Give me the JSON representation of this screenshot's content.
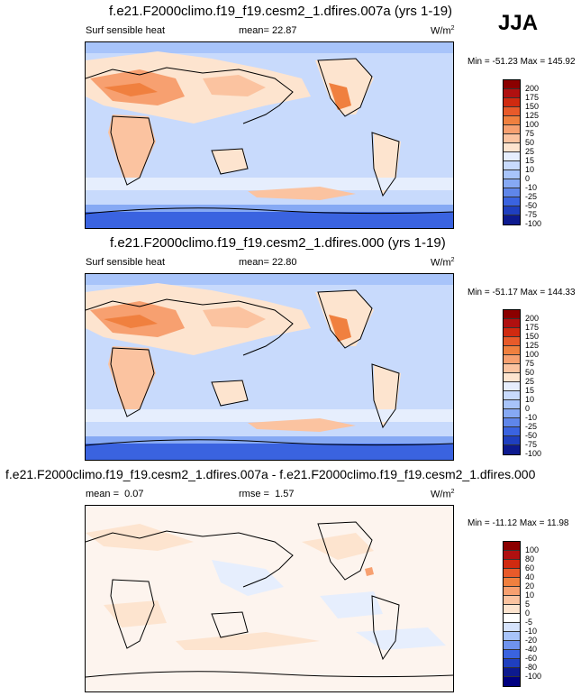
{
  "season": "JJA",
  "panels": [
    {
      "title": "f.e21.F2000climo.f19_f19.cesm2_1.dfires.007a (yrs 1-19)",
      "variable": "Surf sensible heat",
      "stat1_label": "mean=",
      "stat1_value": "22.87",
      "units": "W/m",
      "units_exp": "2",
      "minmax": "Min = -51.23 Max = 145.92",
      "colorbar": {
        "labels": [
          "200",
          "175",
          "150",
          "125",
          "100",
          "75",
          "50",
          "25",
          "15",
          "10",
          "0",
          "-10",
          "-25",
          "-50",
          "-75",
          "-100"
        ],
        "colors": [
          "#8b0000",
          "#b01010",
          "#d02a10",
          "#e85a2a",
          "#f0803f",
          "#f7a070",
          "#fbc3a0",
          "#fde4cf",
          "#e6eefd",
          "#c8dafc",
          "#a8c4fa",
          "#86a9f4",
          "#5f86ea",
          "#3a63e0",
          "#1f3fbf",
          "#0d1a8f",
          "#000080"
        ]
      }
    },
    {
      "title": "f.e21.F2000climo.f19_f19.cesm2_1.dfires.000 (yrs 1-19)",
      "variable": "Surf sensible heat",
      "stat1_label": "mean=",
      "stat1_value": "22.80",
      "units": "W/m",
      "units_exp": "2",
      "minmax": "Min = -51.17 Max = 144.33",
      "colorbar": {
        "labels": [
          "200",
          "175",
          "150",
          "125",
          "100",
          "75",
          "50",
          "25",
          "15",
          "10",
          "0",
          "-10",
          "-25",
          "-50",
          "-75",
          "-100"
        ],
        "colors": [
          "#8b0000",
          "#b01010",
          "#d02a10",
          "#e85a2a",
          "#f0803f",
          "#f7a070",
          "#fbc3a0",
          "#fde4cf",
          "#e6eefd",
          "#c8dafc",
          "#a8c4fa",
          "#86a9f4",
          "#5f86ea",
          "#3a63e0",
          "#1f3fbf",
          "#0d1a8f",
          "#000080"
        ]
      }
    },
    {
      "title": "f.e21.F2000climo.f19_f19.cesm2_1.dfires.007a - f.e21.F2000climo.f19_f19.cesm2_1.dfires.000",
      "stat1_label": "mean =",
      "stat1_value": "0.07",
      "stat2_label": "rmse =",
      "stat2_value": "1.57",
      "units": "W/m",
      "units_exp": "2",
      "minmax": "Min = -11.12 Max = 11.98",
      "colorbar": {
        "labels": [
          "100",
          "80",
          "60",
          "40",
          "20",
          "10",
          "5",
          "0",
          "-5",
          "-10",
          "-20",
          "-40",
          "-60",
          "-80",
          "-100"
        ],
        "colors": [
          "#8b0000",
          "#b01010",
          "#d02a10",
          "#e85a2a",
          "#f0803f",
          "#f7a070",
          "#fbc3a0",
          "#fde4cf",
          "#ffffff",
          "#d6e3fc",
          "#a8c4fa",
          "#6f93ee",
          "#3a63e0",
          "#1f3fbf",
          "#0d1a8f",
          "#000080"
        ]
      }
    }
  ]
}
